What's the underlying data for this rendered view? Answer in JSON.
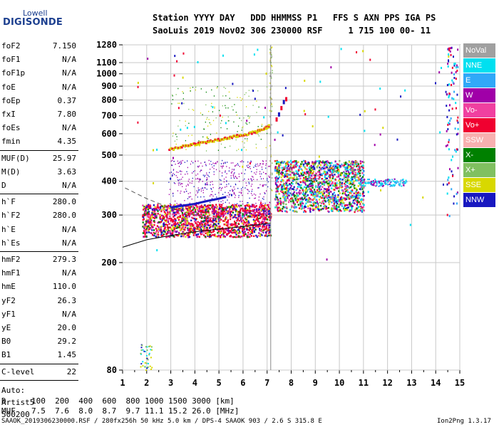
{
  "logo": {
    "small": "Lowell",
    "big": "DIGISONDE"
  },
  "header": {
    "line1": "Station YYYY DAY   DDD HHMMSS P1   FFS S AXN PPS IGA PS",
    "line2": "SaoLuis 2019 Nov02 306 230000 RSF     1 715 100 00- 11"
  },
  "params": {
    "group1": [
      {
        "name": "foF2",
        "value": "7.150"
      },
      {
        "name": "foF1",
        "value": "N/A"
      },
      {
        "name": "foF1p",
        "value": "N/A"
      },
      {
        "name": "foE",
        "value": "N/A"
      },
      {
        "name": "foEp",
        "value": "0.37"
      },
      {
        "name": "fxI",
        "value": "7.80"
      },
      {
        "name": "foEs",
        "value": "N/A"
      },
      {
        "name": "fmin",
        "value": "4.35"
      }
    ],
    "group2": [
      {
        "name": "MUF(D)",
        "value": "25.97"
      },
      {
        "name": "M(D)",
        "value": "3.63"
      },
      {
        "name": "D",
        "value": "N/A"
      }
    ],
    "group3": [
      {
        "name": "h`F",
        "value": "280.0"
      },
      {
        "name": "h`F2",
        "value": "280.0"
      },
      {
        "name": "h`E",
        "value": "N/A"
      },
      {
        "name": "h`Es",
        "value": "N/A"
      }
    ],
    "group4": [
      {
        "name": "hmF2",
        "value": "279.3"
      },
      {
        "name": "hmF1",
        "value": "N/A"
      },
      {
        "name": "hmE",
        "value": "110.0"
      },
      {
        "name": "yF2",
        "value": "26.3"
      },
      {
        "name": "yF1",
        "value": "N/A"
      },
      {
        "name": "yE",
        "value": "20.0"
      },
      {
        "name": "B0",
        "value": "29.2"
      },
      {
        "name": "B1",
        "value": "1.45"
      }
    ],
    "group5": [
      {
        "name": "C-level",
        "value": "22"
      }
    ],
    "auto_lines": [
      "Auto:",
      "Artist5",
      "500200"
    ]
  },
  "legend": [
    {
      "label": "NoVal",
      "color": "#a0a0a0"
    },
    {
      "label": "NNE",
      "color": "#00e0f0"
    },
    {
      "label": "E",
      "color": "#30a8f8"
    },
    {
      "label": "W",
      "color": "#a000a8"
    },
    {
      "label": "Vo-",
      "color": "#f040a0"
    },
    {
      "label": "Vo+",
      "color": "#f00030"
    },
    {
      "label": "SSW",
      "color": "#f8b0b0"
    },
    {
      "label": "X-",
      "color": "#008000"
    },
    {
      "label": "X+",
      "color": "#80c060"
    },
    {
      "label": "SSE",
      "color": "#d8d800"
    },
    {
      "label": "NNW",
      "color": "#1818c0"
    }
  ],
  "chart_data": {
    "type": "scatter",
    "xlabel": "",
    "ylabel": "",
    "xlim": [
      1,
      15
    ],
    "y_scale": "log",
    "ylim": [
      80,
      1280
    ],
    "x_ticks": [
      "1",
      "2",
      "3",
      "4",
      "5",
      "6",
      "7",
      "8",
      "9",
      "10",
      "11",
      "12",
      "13",
      "14",
      "15"
    ],
    "y_ticks": [
      {
        "value": 80,
        "label": "80"
      },
      {
        "value": 200,
        "label": "200"
      },
      {
        "value": 300,
        "label": "300"
      },
      {
        "value": 400,
        "label": "400"
      },
      {
        "value": 500,
        "label": "500"
      },
      {
        "value": 600,
        "label": "600"
      },
      {
        "value": 700,
        "label": "700"
      },
      {
        "value": 800,
        "label": "800"
      },
      {
        "value": 900,
        "label": "900"
      },
      {
        "value": 1000,
        "label": "1000"
      },
      {
        "value": 1100,
        "label": "1100"
      },
      {
        "value": 1280,
        "label": "1280"
      }
    ],
    "vertical_marker_x": 7.15,
    "profile_line": {
      "x": [
        1,
        2,
        3,
        4,
        5,
        6,
        7.15
      ],
      "y": [
        228,
        243,
        252,
        260,
        266,
        272,
        280
      ]
    },
    "dashed_line": {
      "x": [
        1.1,
        2.0,
        3.0,
        4.0,
        5.0
      ],
      "y": [
        378,
        345,
        318,
        300,
        290
      ]
    },
    "o_trace_high": {
      "x": [
        2.9,
        3.5,
        4.0,
        4.5,
        5.0,
        5.5,
        6.0,
        6.5,
        6.9,
        7.05
      ],
      "y": [
        528,
        545,
        555,
        565,
        575,
        588,
        600,
        615,
        635,
        650
      ]
    },
    "o_trace_cusp": {
      "x": [
        7.35,
        7.45,
        7.55,
        7.65,
        7.75
      ],
      "y": [
        690,
        720,
        760,
        800,
        820
      ]
    },
    "w_trace_low": {
      "x": [
        3.0,
        3.5,
        4.0,
        4.5,
        5.0,
        5.3
      ],
      "y": [
        320,
        325,
        330,
        338,
        345,
        350
      ]
    }
  },
  "bottom_table": {
    "d_label": "D",
    "d_values": "100  200  400  600  800 1000 1500 3000 [km]",
    "muf_label": "MUF",
    "muf_values": "7.5  7.6  8.0  8.7  9.7 11.1 15.2 26.0 [MHz]"
  },
  "footer": {
    "left": "SAAOK_2019306230000.RSF / 280fx256h 50 kHz 5.0 km / DPS-4 SAAOK 903 / 2.6 S 315.8 E",
    "right": "Ion2Png 1.3.17"
  }
}
